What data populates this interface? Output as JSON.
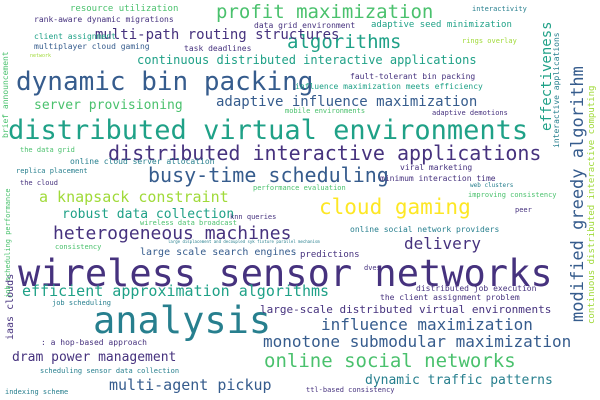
{
  "palette": {
    "dark_purple": "#46327e",
    "blue": "#365c8d",
    "teal_blue": "#277f8e",
    "teal": "#1fa187",
    "green": "#4ac16d",
    "lime": "#a0da39",
    "yellow": "#fde725",
    "navy": "#2f3f79"
  },
  "words": [
    {
      "text": "wireless sensor networks",
      "color": "#46327e"
    },
    {
      "text": "distributed virtual environments",
      "color": "#1fa187"
    },
    {
      "text": "analysis",
      "color": "#277f8e"
    },
    {
      "text": "dynamic bin packing",
      "color": "#365c8d"
    },
    {
      "text": "distributed interactive applications",
      "color": "#46327e"
    },
    {
      "text": "busy-time scheduling",
      "color": "#365c8d"
    },
    {
      "text": "cloud gaming",
      "color": "#fde725"
    },
    {
      "text": "heterogeneous machines",
      "color": "#46327e"
    },
    {
      "text": "profit maximization",
      "color": "#4ac16d"
    },
    {
      "text": "algorithms",
      "color": "#1fa187"
    },
    {
      "text": "online social networks",
      "color": "#4ac16d"
    },
    {
      "text": "modified greedy algorithm",
      "color": "#365c8d"
    },
    {
      "text": "efficient approximation algorithms",
      "color": "#1fa187"
    },
    {
      "text": "influence maximization",
      "color": "#365c8d"
    },
    {
      "text": "monotone submodular maximization",
      "color": "#365c8d"
    },
    {
      "text": "adaptive influence maximization",
      "color": "#365c8d"
    },
    {
      "text": "multi-path routing structures",
      "color": "#46327e"
    },
    {
      "text": "a knapsack constraint",
      "color": "#a0da39"
    },
    {
      "text": "multi-agent pickup",
      "color": "#365c8d"
    },
    {
      "text": "delivery",
      "color": "#46327e"
    },
    {
      "text": "dynamic traffic patterns",
      "color": "#277f8e"
    },
    {
      "text": "dram power management",
      "color": "#46327e"
    },
    {
      "text": "robust data collection",
      "color": "#1fa187"
    },
    {
      "text": "server provisioning",
      "color": "#4ac16d"
    },
    {
      "text": "continuous distributed interactive applications",
      "color": "#1fa187"
    },
    {
      "text": "effectiveness",
      "color": "#1fa187"
    },
    {
      "text": "large-scale distributed virtual environments",
      "color": "#46327e"
    },
    {
      "text": "large scale search engines",
      "color": "#365c8d"
    },
    {
      "text": "predictions",
      "color": "#46327e"
    },
    {
      "text": "resource utilization",
      "color": "#4ac16d"
    },
    {
      "text": "rank-aware dynamic migrations",
      "color": "#46327e"
    },
    {
      "text": "client assignment",
      "color": "#1fa187"
    },
    {
      "text": "multiplayer cloud gaming",
      "color": "#365c8d"
    },
    {
      "text": "task deadlines",
      "color": "#46327e"
    },
    {
      "text": "data grid environment",
      "color": "#46327e"
    },
    {
      "text": "adaptive seed minimization",
      "color": "#1fa187"
    },
    {
      "text": "interactivity",
      "color": "#277f8e"
    },
    {
      "text": "rings overlay",
      "color": "#a0da39"
    },
    {
      "text": "fault-tolerant bin packing",
      "color": "#46327e"
    },
    {
      "text": "influence maximization meets efficiency",
      "color": "#1fa187"
    },
    {
      "text": "mobile environments",
      "color": "#4ac16d"
    },
    {
      "text": "adaptive demotions",
      "color": "#46327e"
    },
    {
      "text": "viral marketing",
      "color": "#46327e"
    },
    {
      "text": "minimum interaction time",
      "color": "#46327e"
    },
    {
      "text": "online cloud server allocation",
      "color": "#277f8e"
    },
    {
      "text": "the data grid",
      "color": "#4ac16d"
    },
    {
      "text": "replica placement",
      "color": "#277f8e"
    },
    {
      "text": "the cloud",
      "color": "#46327e"
    },
    {
      "text": "performance evaluation",
      "color": "#4ac16d"
    },
    {
      "text": "web clusters",
      "color": "#277f8e"
    },
    {
      "text": "improving consistency",
      "color": "#4ac16d"
    },
    {
      "text": "peer",
      "color": "#46327e"
    },
    {
      "text": "knn queries",
      "color": "#46327e"
    },
    {
      "text": "wireless data broadcast",
      "color": "#4ac16d"
    },
    {
      "text": "online social network providers",
      "color": "#277f8e"
    },
    {
      "text": "dves",
      "color": "#46327e"
    },
    {
      "text": "consistency",
      "color": "#4ac16d"
    },
    {
      "text": "large displacement and decoupled syk fixture parallel mechanism",
      "color": "#277f8e"
    },
    {
      "text": "distributed job execution",
      "color": "#46327e"
    },
    {
      "text": "the client assignment problem",
      "color": "#46327e"
    },
    {
      "text": "job scheduling",
      "color": "#277f8e"
    },
    {
      "text": ": a hop-based approach",
      "color": "#46327e"
    },
    {
      "text": "scheduling sensor data collection",
      "color": "#277f8e"
    },
    {
      "text": "indexing scheme",
      "color": "#277f8e"
    },
    {
      "text": "ttl-based consistency",
      "color": "#46327e"
    },
    {
      "text": "network",
      "color": "#a0da39"
    },
    {
      "text": "brief announcement",
      "color": "#4ac16d"
    },
    {
      "text": "iaas clouds",
      "color": "#46327e"
    },
    {
      "text": "job scheduling performance",
      "color": "#4ac16d"
    },
    {
      "text": "continuous distributed interactive computing",
      "color": "#a0da39"
    },
    {
      "text": "interactive applications",
      "color": "#277f8e"
    }
  ]
}
